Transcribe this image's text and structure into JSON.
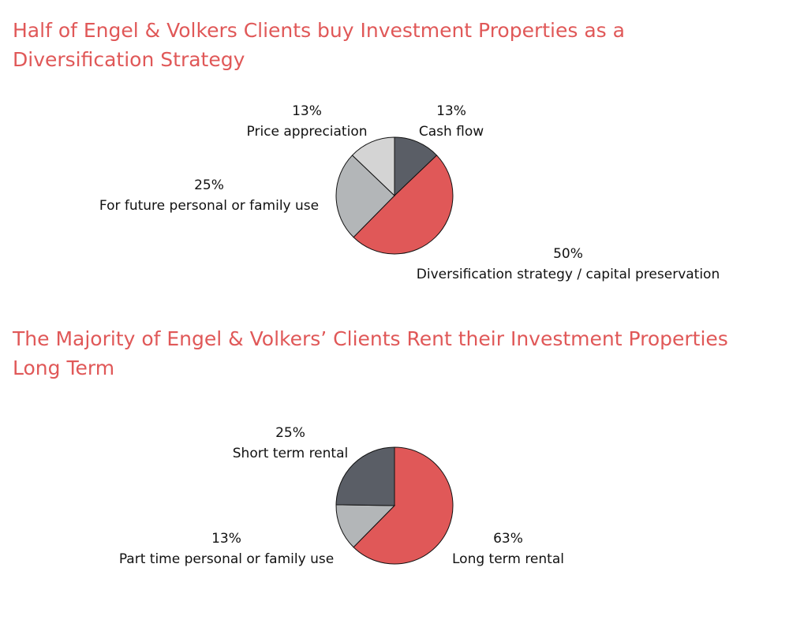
{
  "colors": {
    "title": "#e05858",
    "red": "#e05858",
    "dark_gray": "#5a5e66",
    "mid_gray": "#b3b6b8",
    "light_gray": "#d4d4d4",
    "outline": "#111111"
  },
  "chart_data": [
    {
      "type": "pie",
      "title": "Half of Engel & Volkers Clients buy Investment Properties as a Diversification Strategy",
      "slices": [
        {
          "label": "Cash flow",
          "value": 13,
          "value_label": "13%",
          "color": "#5a5e66"
        },
        {
          "label": "Diversification strategy / capital preservation",
          "value": 50,
          "value_label": "50%",
          "color": "#e05858"
        },
        {
          "label": "For future personal or family use",
          "value": 25,
          "value_label": "25%",
          "color": "#b3b6b8"
        },
        {
          "label": "Price appreciation",
          "value": 13,
          "value_label": "13%",
          "color": "#d4d4d4"
        }
      ]
    },
    {
      "type": "pie",
      "title": "The Majority of Engel & Volkers’ Clients Rent their Investment Properties Long Term",
      "slices": [
        {
          "label": "Long term rental",
          "value": 63,
          "value_label": "63%",
          "color": "#e05858"
        },
        {
          "label": "Part time personal or family use",
          "value": 13,
          "value_label": "13%",
          "color": "#b3b6b8"
        },
        {
          "label": "Short term rental",
          "value": 25,
          "value_label": "25%",
          "color": "#5a5e66"
        }
      ]
    }
  ]
}
